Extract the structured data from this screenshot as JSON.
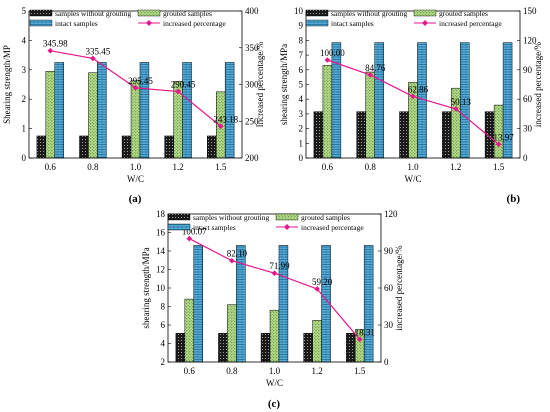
{
  "palette": {
    "without": "#1a1a1a",
    "grouted": "#b5d98a",
    "intact": "#5ab0dc",
    "line": "#e6158c"
  },
  "chart_data": [
    {
      "panel": "(a)",
      "type": "bar",
      "categories": [
        "0.6",
        "0.8",
        "1.0",
        "1.2",
        "1.5"
      ],
      "xlabel": "W/C",
      "ylabel": "Shearing strength/MP",
      "y2label": "Increased percentage/%",
      "ylim": [
        0,
        5
      ],
      "yticks": [
        0,
        1,
        2,
        3,
        4,
        5
      ],
      "y2lim": [
        200,
        400
      ],
      "y2ticks": [
        200,
        250,
        300,
        350,
        400
      ],
      "series": [
        {
          "name": "samples without grouting",
          "style": "without",
          "values": [
            0.75,
            0.75,
            0.75,
            0.75,
            0.75
          ]
        },
        {
          "name": "grouted samples",
          "style": "grouted",
          "values": [
            2.95,
            2.9,
            2.63,
            2.6,
            2.25
          ]
        },
        {
          "name": "intact samples",
          "style": "intact",
          "values": [
            3.25,
            3.25,
            3.25,
            3.25,
            3.25
          ]
        }
      ],
      "line": {
        "name": "increased percentage",
        "axis": "y2",
        "values": [
          345.98,
          335.45,
          295.45,
          290.45,
          243.18
        ],
        "labels": [
          "345.98",
          "335.45",
          "295.45",
          "290.45",
          "243.18"
        ]
      }
    },
    {
      "panel": "(b)",
      "type": "bar",
      "categories": [
        "0.6",
        "0.8",
        "1.0",
        "1.2",
        "1.5"
      ],
      "xlabel": "W/C",
      "ylabel": "shearing strength/MPa",
      "y2label": "increased percentage/%",
      "ylim": [
        0,
        10
      ],
      "yticks": [
        0,
        1,
        2,
        3,
        4,
        5,
        6,
        7,
        8,
        9,
        10
      ],
      "y2lim": [
        0,
        150
      ],
      "y2ticks": [
        0,
        30,
        60,
        90,
        120,
        150
      ],
      "series": [
        {
          "name": "samples without grouting",
          "style": "without",
          "values": [
            3.15,
            3.15,
            3.15,
            3.15,
            3.15
          ]
        },
        {
          "name": "grouted samples",
          "style": "grouted",
          "values": [
            6.3,
            5.85,
            5.15,
            4.75,
            3.6
          ]
        },
        {
          "name": "intact samples",
          "style": "intact",
          "values": [
            7.85,
            7.85,
            7.85,
            7.85,
            7.85
          ]
        }
      ],
      "line": {
        "name": "increased percentage",
        "axis": "y2",
        "values": [
          100.0,
          84.76,
          62.86,
          50.13,
          13.97
        ],
        "labels": [
          "100.00",
          "84.76",
          "62.86",
          "50.13",
          "13.97"
        ]
      }
    },
    {
      "panel": "(c)",
      "type": "bar",
      "categories": [
        "0.6",
        "0.8",
        "1.0",
        "1.2",
        "1.5"
      ],
      "xlabel": "W/C",
      "ylabel": "shearing strength/MPa",
      "y2label": "increased percentage/%",
      "ylim": [
        2,
        18
      ],
      "yticks": [
        2,
        4,
        6,
        8,
        10,
        12,
        14,
        16,
        18
      ],
      "y2lim": [
        0,
        120
      ],
      "y2ticks": [
        0,
        30,
        60,
        90,
        120
      ],
      "series": [
        {
          "name": "samples without grouting",
          "style": "without",
          "values": [
            5.1,
            5.1,
            5.1,
            5.1,
            5.1
          ]
        },
        {
          "name": "grouted samples",
          "style": "grouted",
          "values": [
            8.8,
            8.2,
            7.6,
            6.5,
            5.5
          ]
        },
        {
          "name": "intact samples",
          "style": "intact",
          "values": [
            14.6,
            14.6,
            14.6,
            14.6,
            14.6
          ]
        }
      ],
      "line": {
        "name": "increased percentage",
        "axis": "y2",
        "values": [
          100.07,
          82.1,
          71.99,
          59.2,
          18.31
        ],
        "labels": [
          "100.07",
          "82.10",
          "71.99",
          "59.20",
          "18.31"
        ]
      }
    }
  ]
}
